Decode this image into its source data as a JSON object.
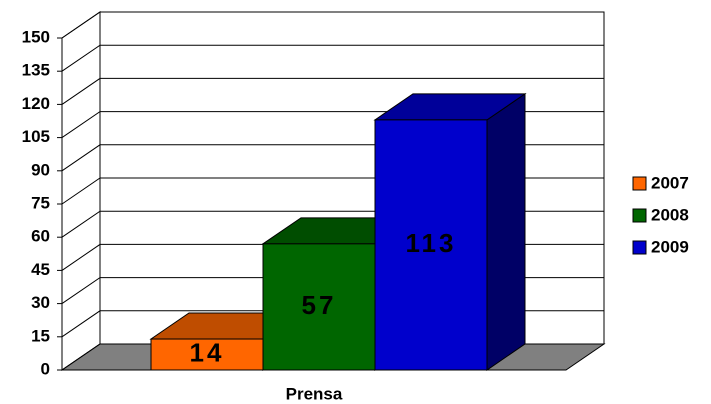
{
  "chart_data": {
    "type": "bar",
    "categories": [
      "Prensa"
    ],
    "series": [
      {
        "name": "2007",
        "color": "#ff6600",
        "values": [
          14
        ]
      },
      {
        "name": "2008",
        "color": "#006600",
        "values": [
          57
        ]
      },
      {
        "name": "2009",
        "color": "#0000cc",
        "values": [
          113
        ]
      }
    ],
    "ylim": [
      0,
      150
    ],
    "yticks": [
      0,
      15,
      30,
      45,
      60,
      75,
      90,
      105,
      120,
      135,
      150
    ],
    "grid": true,
    "legend": "right",
    "floor_color": "#808080"
  }
}
